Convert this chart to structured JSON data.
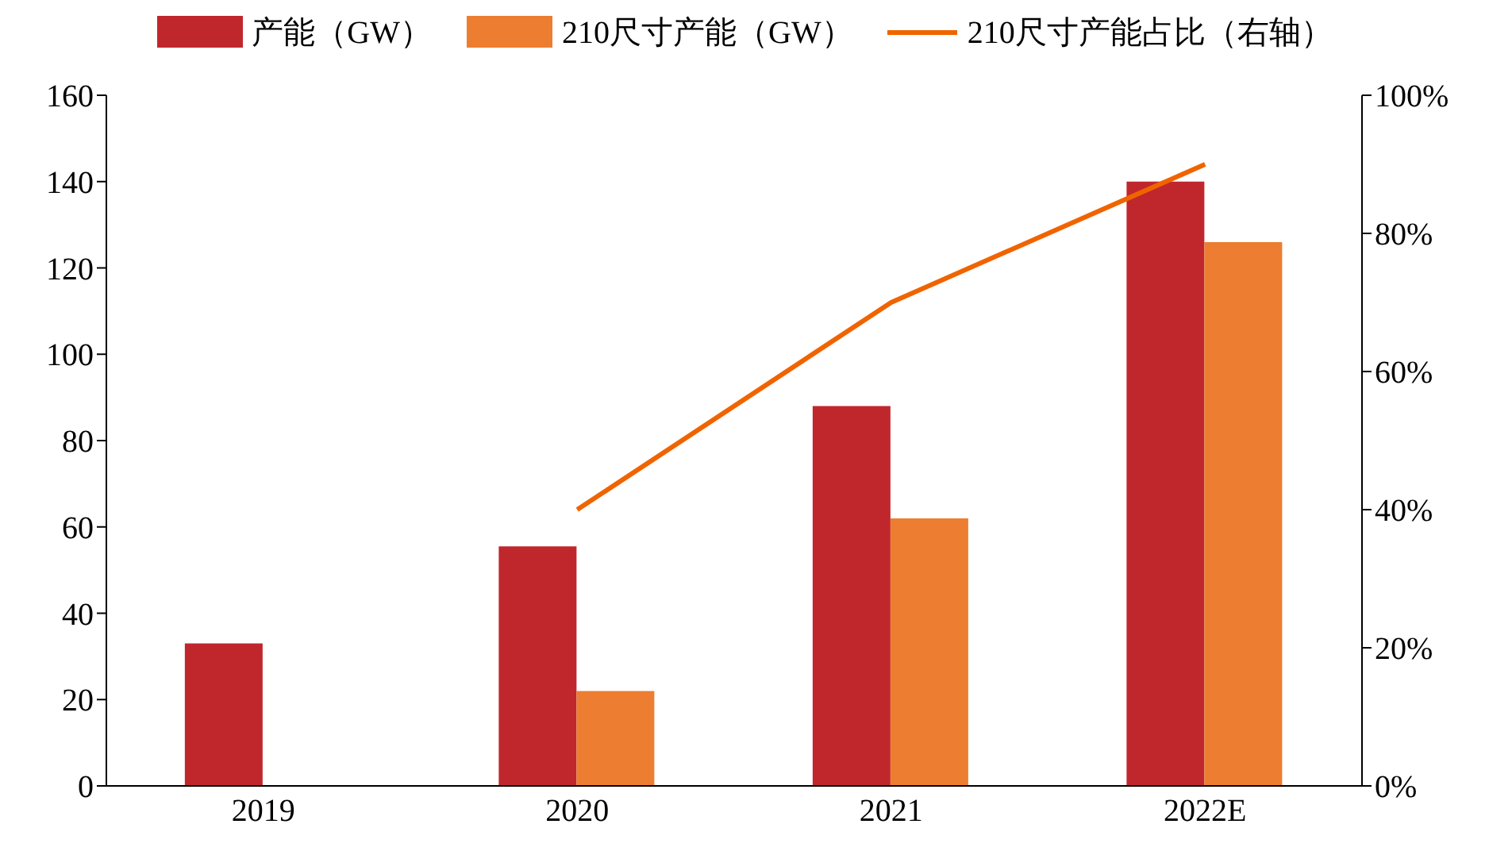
{
  "chart_data": {
    "type": "bar",
    "categories": [
      "2019",
      "2020",
      "2021",
      "2022E"
    ],
    "series": [
      {
        "name": "产能（GW）",
        "color": "#c0272d",
        "values": [
          33,
          55.5,
          88,
          140
        ]
      },
      {
        "name": "210尺寸产能（GW）",
        "color": "#ed7d31",
        "values": [
          null,
          22,
          62,
          126
        ]
      },
      {
        "name": "210尺寸产能占比（右轴）",
        "type": "line",
        "axis": "y2",
        "color": "#f06400",
        "values": [
          null,
          40,
          70,
          90
        ]
      }
    ],
    "ylim": [
      0,
      160
    ],
    "yticks": [
      0,
      20,
      40,
      60,
      80,
      100,
      120,
      140,
      160
    ],
    "y2lim": [
      0,
      100
    ],
    "y2ticks": [
      {
        "value": 0,
        "label": "0%"
      },
      {
        "value": 20,
        "label": "20%"
      },
      {
        "value": 40,
        "label": "40%"
      },
      {
        "value": 60,
        "label": "60%"
      },
      {
        "value": 80,
        "label": "80%"
      },
      {
        "value": 100,
        "label": "100%"
      }
    ],
    "grid": false,
    "legend": "top",
    "marker": "none",
    "line_style": "solid"
  }
}
